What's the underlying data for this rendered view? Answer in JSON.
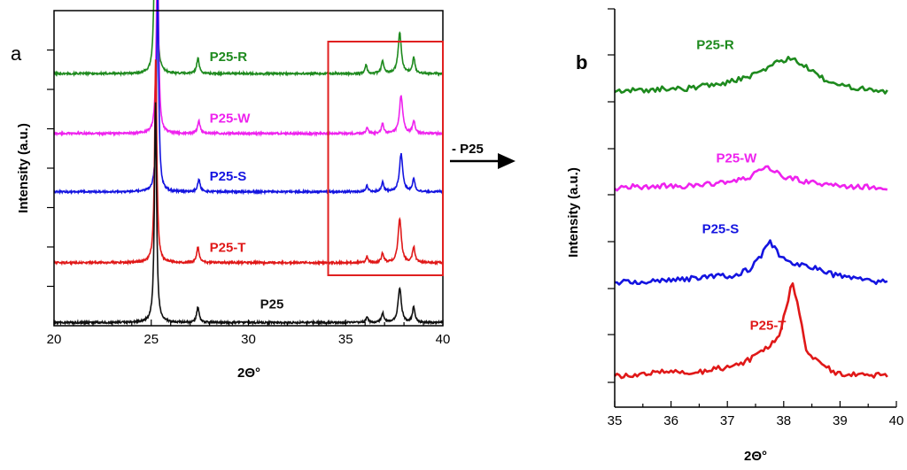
{
  "panel_a_letter": "a",
  "panel_b_letter": "b",
  "arrow_label": "- P25",
  "chart_data": [
    {
      "type": "line",
      "panel": "a",
      "xlabel": "2Θ°",
      "ylabel": "Intensity (a.u.)",
      "xlim": [
        20,
        40
      ],
      "xticks": [
        20,
        25,
        30,
        35,
        40
      ],
      "y_ticks_labeled": false,
      "highlight_region": {
        "x_range": [
          34.1,
          40
        ],
        "color": "#e02020"
      },
      "series": [
        {
          "name": "P25-R",
          "color": "#1e8a1e",
          "baseline": 0.8,
          "peaks": [
            [
              25.22,
              0.7,
              0.13
            ],
            [
              27.4,
              0.05,
              0.15
            ],
            [
              36.05,
              0.03,
              0.12
            ],
            [
              36.9,
              0.04,
              0.15
            ],
            [
              37.78,
              0.13,
              0.2
            ],
            [
              38.5,
              0.05,
              0.15
            ]
          ]
        },
        {
          "name": "P25-W",
          "color": "#ee22ee",
          "baseline": 0.61,
          "peaks": [
            [
              25.32,
              0.62,
              0.13
            ],
            [
              27.45,
              0.04,
              0.15
            ],
            [
              36.1,
              0.02,
              0.12
            ],
            [
              36.9,
              0.03,
              0.15
            ],
            [
              37.85,
              0.12,
              0.2
            ],
            [
              38.5,
              0.04,
              0.15
            ]
          ]
        },
        {
          "name": "P25-S",
          "color": "#1414e0",
          "baseline": 0.425,
          "peaks": [
            [
              25.33,
              0.63,
              0.13
            ],
            [
              27.45,
              0.04,
              0.15
            ],
            [
              36.1,
              0.02,
              0.12
            ],
            [
              36.9,
              0.03,
              0.15
            ],
            [
              37.85,
              0.12,
              0.2
            ],
            [
              38.5,
              0.04,
              0.15
            ]
          ]
        },
        {
          "name": "P25-T",
          "color": "#e01818",
          "baseline": 0.2,
          "peaks": [
            [
              25.23,
              0.66,
              0.13
            ],
            [
              27.4,
              0.05,
              0.15
            ],
            [
              36.1,
              0.02,
              0.12
            ],
            [
              36.9,
              0.03,
              0.15
            ],
            [
              37.78,
              0.14,
              0.2
            ],
            [
              38.5,
              0.05,
              0.15
            ]
          ]
        },
        {
          "name": "P25",
          "color": "#111111",
          "baseline": 0.01,
          "peaks": [
            [
              25.22,
              0.7,
              0.13
            ],
            [
              27.4,
              0.05,
              0.15
            ],
            [
              36.1,
              0.02,
              0.12
            ],
            [
              36.9,
              0.03,
              0.15
            ],
            [
              37.78,
              0.11,
              0.2
            ],
            [
              38.5,
              0.05,
              0.15
            ]
          ]
        }
      ]
    },
    {
      "type": "line",
      "panel": "b",
      "xlabel": "2Θ°",
      "ylabel": "Intensity (a.u.)",
      "xlim": [
        35,
        40
      ],
      "xticks": [
        35,
        36,
        37,
        38,
        39,
        40
      ],
      "y_ticks_labeled": false,
      "series": [
        {
          "name": "P25-R",
          "color": "#1e8a1e",
          "x": [
            35.0,
            35.3,
            35.6,
            35.9,
            36.2,
            36.5,
            36.8,
            37.0,
            37.2,
            37.4,
            37.6,
            37.8,
            38.0,
            38.15,
            38.3,
            38.5,
            38.7,
            38.9,
            39.2,
            39.5,
            39.85
          ],
          "y": [
            0.765,
            0.77,
            0.768,
            0.775,
            0.772,
            0.78,
            0.785,
            0.79,
            0.8,
            0.805,
            0.82,
            0.84,
            0.85,
            0.855,
            0.84,
            0.82,
            0.8,
            0.785,
            0.778,
            0.774,
            0.765
          ]
        },
        {
          "name": "P25-W",
          "color": "#ee22ee",
          "x": [
            35.0,
            35.3,
            35.6,
            35.9,
            36.2,
            36.5,
            36.8,
            37.0,
            37.2,
            37.4,
            37.55,
            37.7,
            37.85,
            38.0,
            38.2,
            38.5,
            38.8,
            39.1,
            39.4,
            39.85
          ],
          "y": [
            0.505,
            0.51,
            0.507,
            0.512,
            0.51,
            0.513,
            0.518,
            0.523,
            0.526,
            0.535,
            0.552,
            0.568,
            0.55,
            0.535,
            0.53,
            0.52,
            0.515,
            0.511,
            0.509,
            0.505
          ]
        },
        {
          "name": "P25-S",
          "color": "#1414e0",
          "x": [
            35.0,
            35.3,
            35.6,
            35.9,
            36.2,
            36.5,
            36.8,
            37.0,
            37.2,
            37.4,
            37.6,
            37.75,
            37.9,
            38.1,
            38.3,
            38.6,
            38.9,
            39.2,
            39.5,
            39.85
          ],
          "y": [
            0.252,
            0.255,
            0.254,
            0.258,
            0.26,
            0.265,
            0.272,
            0.268,
            0.275,
            0.288,
            0.325,
            0.365,
            0.33,
            0.31,
            0.3,
            0.292,
            0.272,
            0.262,
            0.257,
            0.252
          ]
        },
        {
          "name": "P25-T",
          "color": "#e01818",
          "x": [
            35.0,
            35.3,
            35.6,
            35.9,
            36.2,
            36.5,
            36.8,
            37.1,
            37.4,
            37.7,
            37.9,
            38.05,
            38.15,
            38.25,
            38.4,
            38.6,
            38.9,
            39.2,
            39.5,
            39.85
          ],
          "y": [
            0.0,
            0.002,
            0.005,
            0.015,
            0.012,
            0.01,
            0.02,
            0.025,
            0.045,
            0.075,
            0.1,
            0.19,
            0.25,
            0.2,
            0.07,
            0.04,
            0.01,
            0.005,
            0.003,
            0.002
          ]
        }
      ]
    }
  ]
}
